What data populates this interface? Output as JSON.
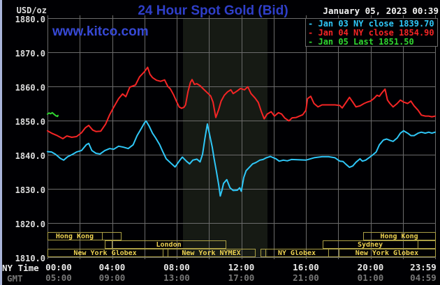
{
  "header": {
    "units": "USD/oz",
    "title": "24 Hour Spot Gold (Bid)",
    "datetime": "January 05, 2023 00:39",
    "watermark": "www.kitco.com"
  },
  "legend": {
    "items": [
      {
        "key": "-",
        "label": "Jan 03 NY close 1839.70",
        "color": "#2fc7f7"
      },
      {
        "key": "-",
        "label": "Jan 04 NY close 1854.90",
        "color": "#f42525"
      },
      {
        "key": "-",
        "label": "Jan 05 Last 1851.50",
        "color": "#30d530"
      }
    ]
  },
  "axis": {
    "ny_row_label": "NY Time",
    "gmt_row_label": "GMT",
    "y_ticks": [
      {
        "label": "1880.0",
        "value": 1880
      },
      {
        "label": "1870.0",
        "value": 1870
      },
      {
        "label": "1860.0",
        "value": 1860
      },
      {
        "label": "1850.0",
        "value": 1850
      },
      {
        "label": "1840.0",
        "value": 1840
      },
      {
        "label": "1830.0",
        "value": 1830
      },
      {
        "label": "1820.0",
        "value": 1820
      },
      {
        "label": "1810.0",
        "value": 1810
      }
    ],
    "x_ticks": [
      {
        "ny": "00:00",
        "gmt": "05:00",
        "t": 0
      },
      {
        "ny": "04:00",
        "gmt": "09:00",
        "t": 4
      },
      {
        "ny": "08:00",
        "gmt": "13:00",
        "t": 8
      },
      {
        "ny": "12:00",
        "gmt": "17:00",
        "t": 12
      },
      {
        "ny": "16:00",
        "gmt": "21:00",
        "t": 16
      },
      {
        "ny": "20:00",
        "gmt": "01:00",
        "t": 20
      },
      {
        "ny": "23:59",
        "gmt": "04:59",
        "t": 24
      }
    ]
  },
  "sessions": {
    "box_color": "#ab9f45",
    "text_color": "#edd251",
    "rows": [
      [
        {
          "label": "Hong Kong",
          "t0": 0,
          "t1": 3.37
        },
        {
          "label": "",
          "t0": 3.37,
          "t1": 4.55
        },
        {
          "label": "Hong Kong",
          "t0": 19.55,
          "t1": 24
        }
      ],
      [
        {
          "label": "",
          "t0": 3.55,
          "t1": 3.98
        },
        {
          "label": "London",
          "t0": 3.98,
          "t1": 11.03
        },
        {
          "label": "Sydney",
          "t0": 17.04,
          "t1": 22.92
        },
        {
          "label": "",
          "t0": 22.92,
          "t1": 24
        }
      ],
      [
        {
          "label": "New York Globex",
          "t0": 0,
          "t1": 7.14
        },
        {
          "label": "",
          "t0": 7.14,
          "t1": 7.44
        },
        {
          "label": "New York NYMEX",
          "t0": 7.44,
          "t1": 12.84
        },
        {
          "label": "",
          "t0": 13.19,
          "t1": 13.49
        },
        {
          "label": "NY Globex",
          "t0": 13.49,
          "t1": 17.38
        },
        {
          "label": "",
          "t0": 17.38,
          "t1": 18.03
        },
        {
          "label": "New York Globex",
          "t0": 18.03,
          "t1": 24
        }
      ]
    ]
  },
  "chart_data": {
    "type": "line",
    "title": "24 Hour Spot Gold (Bid)",
    "xlabel": "NY Time (hours, 00:00-23:59)",
    "ylabel": "USD/oz",
    "x_range": [
      0,
      24
    ],
    "y_range": [
      1810,
      1880
    ],
    "grid": true,
    "grid_color": "#6b6b6b",
    "highlight_band_hours": [
      8.39,
      13.62
    ],
    "highlight_band_color": "#161a14",
    "legend_position": "top-right",
    "series": [
      {
        "name": "Jan 03 (NY close 1839.70)",
        "color": "#2fc7f7",
        "points": [
          [
            0,
            1840.9
          ],
          [
            0.25,
            1840.8
          ],
          [
            0.5,
            1840.1
          ],
          [
            0.8,
            1838.9
          ],
          [
            1.0,
            1838.4
          ],
          [
            1.25,
            1839.4
          ],
          [
            1.55,
            1840.1
          ],
          [
            1.8,
            1840.8
          ],
          [
            2.1,
            1841.2
          ],
          [
            2.4,
            1842.9
          ],
          [
            2.55,
            1843.3
          ],
          [
            2.75,
            1841.2
          ],
          [
            3.0,
            1840.4
          ],
          [
            3.25,
            1840.2
          ],
          [
            3.55,
            1841.2
          ],
          [
            3.85,
            1841.8
          ],
          [
            4.1,
            1841.6
          ],
          [
            4.4,
            1842.5
          ],
          [
            4.7,
            1842.2
          ],
          [
            5.0,
            1841.8
          ],
          [
            5.3,
            1842.9
          ],
          [
            5.55,
            1845.6
          ],
          [
            5.8,
            1847.6
          ],
          [
            6.0,
            1849.3
          ],
          [
            6.1,
            1849.9
          ],
          [
            6.3,
            1848.3
          ],
          [
            6.5,
            1846.3
          ],
          [
            6.7,
            1844.9
          ],
          [
            6.95,
            1842.9
          ],
          [
            7.15,
            1840.8
          ],
          [
            7.35,
            1838.8
          ],
          [
            7.6,
            1837.7
          ],
          [
            7.9,
            1836.4
          ],
          [
            8.15,
            1838.1
          ],
          [
            8.35,
            1839.3
          ],
          [
            8.6,
            1838.1
          ],
          [
            8.8,
            1837.3
          ],
          [
            9.0,
            1838.4
          ],
          [
            9.25,
            1838.7
          ],
          [
            9.45,
            1837.9
          ],
          [
            9.6,
            1840.1
          ],
          [
            9.75,
            1844.9
          ],
          [
            9.9,
            1849.0
          ],
          [
            10.05,
            1845.6
          ],
          [
            10.2,
            1842.2
          ],
          [
            10.32,
            1838.8
          ],
          [
            10.45,
            1835.3
          ],
          [
            10.6,
            1831.2
          ],
          [
            10.7,
            1827.9
          ],
          [
            10.8,
            1829.6
          ],
          [
            10.9,
            1831.6
          ],
          [
            11.1,
            1832.7
          ],
          [
            11.3,
            1830.3
          ],
          [
            11.5,
            1829.5
          ],
          [
            11.75,
            1829.6
          ],
          [
            11.9,
            1830.3
          ],
          [
            12.0,
            1829.3
          ],
          [
            12.15,
            1833.3
          ],
          [
            12.3,
            1835.3
          ],
          [
            12.5,
            1836.3
          ],
          [
            12.7,
            1837.3
          ],
          [
            12.9,
            1837.7
          ],
          [
            13.15,
            1838.4
          ],
          [
            13.35,
            1838.6
          ],
          [
            13.55,
            1839.1
          ],
          [
            13.8,
            1839.5
          ],
          [
            14.15,
            1838.8
          ],
          [
            14.35,
            1838.1
          ],
          [
            14.6,
            1838.4
          ],
          [
            14.85,
            1838.2
          ],
          [
            15.1,
            1838.6
          ],
          [
            15.5,
            1838.5
          ],
          [
            16.0,
            1838.4
          ],
          [
            16.5,
            1839.1
          ],
          [
            17.0,
            1839.4
          ],
          [
            17.4,
            1839.4
          ],
          [
            17.8,
            1839.1
          ],
          [
            18.1,
            1838.1
          ],
          [
            18.3,
            1838.0
          ],
          [
            18.5,
            1837.1
          ],
          [
            18.7,
            1836.3
          ],
          [
            18.9,
            1836.7
          ],
          [
            19.1,
            1837.8
          ],
          [
            19.35,
            1838.8
          ],
          [
            19.5,
            1838.1
          ],
          [
            19.7,
            1838.4
          ],
          [
            19.9,
            1839.1
          ],
          [
            20.1,
            1839.8
          ],
          [
            20.35,
            1840.8
          ],
          [
            20.55,
            1842.9
          ],
          [
            20.8,
            1844.3
          ],
          [
            21.0,
            1844.6
          ],
          [
            21.2,
            1844.2
          ],
          [
            21.4,
            1843.9
          ],
          [
            21.65,
            1844.9
          ],
          [
            21.85,
            1846.3
          ],
          [
            22.05,
            1847.0
          ],
          [
            22.3,
            1846.3
          ],
          [
            22.5,
            1845.6
          ],
          [
            22.7,
            1845.6
          ],
          [
            22.95,
            1846.3
          ],
          [
            23.15,
            1846.6
          ],
          [
            23.4,
            1846.3
          ],
          [
            23.6,
            1846.6
          ],
          [
            23.8,
            1846.3
          ],
          [
            24,
            1846.6
          ]
        ]
      },
      {
        "name": "Jan 04 (NY close 1854.90)",
        "color": "#f42525",
        "points": [
          [
            0,
            1847.0
          ],
          [
            0.3,
            1846.2
          ],
          [
            0.6,
            1845.6
          ],
          [
            0.95,
            1844.7
          ],
          [
            1.2,
            1845.5
          ],
          [
            1.5,
            1845.1
          ],
          [
            1.8,
            1845.3
          ],
          [
            2.1,
            1846.4
          ],
          [
            2.35,
            1847.9
          ],
          [
            2.55,
            1848.6
          ],
          [
            2.8,
            1847.2
          ],
          [
            3.0,
            1846.8
          ],
          [
            3.3,
            1846.9
          ],
          [
            3.6,
            1849.0
          ],
          [
            3.85,
            1851.7
          ],
          [
            4.1,
            1853.9
          ],
          [
            4.4,
            1856.4
          ],
          [
            4.65,
            1857.8
          ],
          [
            4.85,
            1857.0
          ],
          [
            5.1,
            1859.8
          ],
          [
            5.45,
            1860.4
          ],
          [
            5.7,
            1862.8
          ],
          [
            6.0,
            1864.3
          ],
          [
            6.2,
            1865.6
          ],
          [
            6.35,
            1863.5
          ],
          [
            6.5,
            1862.6
          ],
          [
            6.75,
            1861.8
          ],
          [
            7.0,
            1861.5
          ],
          [
            7.25,
            1861.9
          ],
          [
            7.45,
            1860.0
          ],
          [
            7.6,
            1859.3
          ],
          [
            7.8,
            1857.6
          ],
          [
            8.0,
            1855.5
          ],
          [
            8.15,
            1854.0
          ],
          [
            8.3,
            1853.6
          ],
          [
            8.45,
            1853.9
          ],
          [
            8.55,
            1854.6
          ],
          [
            8.7,
            1858.5
          ],
          [
            8.85,
            1861.2
          ],
          [
            8.95,
            1862.0
          ],
          [
            9.1,
            1860.6
          ],
          [
            9.25,
            1860.8
          ],
          [
            9.45,
            1860.2
          ],
          [
            9.6,
            1859.5
          ],
          [
            9.75,
            1858.8
          ],
          [
            9.95,
            1857.9
          ],
          [
            10.1,
            1857.2
          ],
          [
            10.25,
            1855.4
          ],
          [
            10.42,
            1850.9
          ],
          [
            10.6,
            1853.2
          ],
          [
            10.75,
            1855.7
          ],
          [
            10.95,
            1857.4
          ],
          [
            11.15,
            1858.4
          ],
          [
            11.35,
            1859.0
          ],
          [
            11.5,
            1857.9
          ],
          [
            11.75,
            1858.7
          ],
          [
            11.95,
            1859.4
          ],
          [
            12.2,
            1859.0
          ],
          [
            12.4,
            1859.9
          ],
          [
            12.6,
            1857.9
          ],
          [
            12.85,
            1856.6
          ],
          [
            13.05,
            1855.3
          ],
          [
            13.25,
            1852.5
          ],
          [
            13.42,
            1850.5
          ],
          [
            13.6,
            1851.9
          ],
          [
            13.85,
            1852.6
          ],
          [
            14.05,
            1851.3
          ],
          [
            14.3,
            1852.3
          ],
          [
            14.5,
            1851.9
          ],
          [
            14.7,
            1850.7
          ],
          [
            14.95,
            1849.9
          ],
          [
            15.15,
            1850.8
          ],
          [
            15.4,
            1850.9
          ],
          [
            15.6,
            1851.3
          ],
          [
            15.8,
            1851.7
          ],
          [
            16.0,
            1853.0
          ],
          [
            16.1,
            1856.4
          ],
          [
            16.3,
            1857.1
          ],
          [
            16.5,
            1855.0
          ],
          [
            16.75,
            1854.0
          ],
          [
            17.0,
            1854.6
          ],
          [
            17.4,
            1854.6
          ],
          [
            17.8,
            1854.6
          ],
          [
            18.1,
            1854.4
          ],
          [
            18.25,
            1853.7
          ],
          [
            18.5,
            1855.4
          ],
          [
            18.7,
            1856.8
          ],
          [
            18.9,
            1855.4
          ],
          [
            19.1,
            1854.0
          ],
          [
            19.35,
            1854.3
          ],
          [
            19.6,
            1855.0
          ],
          [
            19.8,
            1855.4
          ],
          [
            20.0,
            1855.7
          ],
          [
            20.2,
            1856.4
          ],
          [
            20.4,
            1857.4
          ],
          [
            20.55,
            1857.1
          ],
          [
            20.7,
            1858.1
          ],
          [
            20.9,
            1859.2
          ],
          [
            21.05,
            1856.0
          ],
          [
            21.2,
            1855.0
          ],
          [
            21.4,
            1854.0
          ],
          [
            21.65,
            1855.0
          ],
          [
            21.85,
            1856.0
          ],
          [
            22.05,
            1855.4
          ],
          [
            22.3,
            1855.0
          ],
          [
            22.5,
            1855.7
          ],
          [
            22.7,
            1854.3
          ],
          [
            22.95,
            1853.0
          ],
          [
            23.15,
            1851.6
          ],
          [
            23.4,
            1851.3
          ],
          [
            23.6,
            1851.3
          ],
          [
            23.8,
            1851.1
          ],
          [
            24,
            1851.3
          ]
        ]
      },
      {
        "name": "Jan 05 (Last 1851.50)",
        "color": "#30d530",
        "points": [
          [
            0,
            1851.9
          ],
          [
            0.1,
            1852.2
          ],
          [
            0.2,
            1852.0
          ],
          [
            0.3,
            1852.3
          ],
          [
            0.42,
            1851.8
          ],
          [
            0.52,
            1851.4
          ],
          [
            0.62,
            1851.2
          ],
          [
            0.65,
            1851.5
          ]
        ]
      }
    ]
  }
}
